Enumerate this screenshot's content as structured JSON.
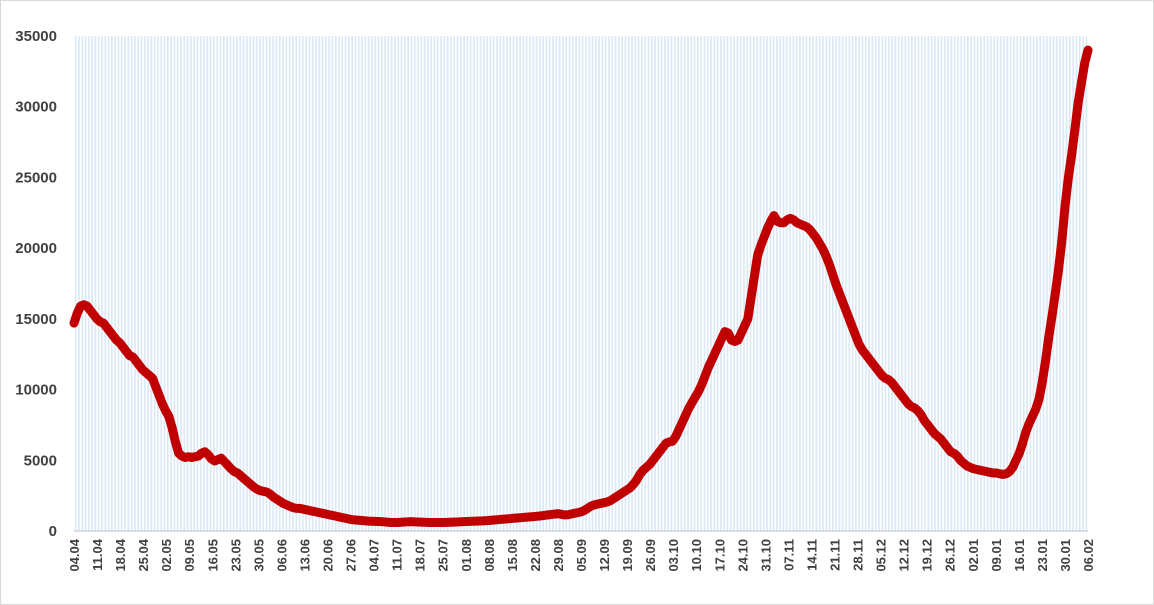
{
  "chart_data": {
    "type": "line",
    "title": "",
    "xlabel": "",
    "ylabel": "",
    "ylim": [
      0,
      35000
    ],
    "yticks": [
      0,
      5000,
      10000,
      15000,
      20000,
      25000,
      30000,
      35000
    ],
    "ytick_labels": [
      "0",
      "5000",
      "10000",
      "15000",
      "20000",
      "25000",
      "30000",
      "35000"
    ],
    "xtick_labels": [
      "04.04",
      "11.04",
      "18.04",
      "25.04",
      "02.05",
      "09.05",
      "16.05",
      "23.05",
      "30.05",
      "06.06",
      "13.06",
      "20.06",
      "27.06",
      "04.07",
      "11.07",
      "18.07",
      "25.07",
      "01.08",
      "08.08",
      "15.08",
      "22.08",
      "29.08",
      "05.09",
      "12.09",
      "19.09",
      "26.09",
      "03.10",
      "10.10",
      "17.10",
      "24.10",
      "31.10",
      "07.11",
      "14.11",
      "21.11",
      "28.11",
      "05.12",
      "12.12",
      "19.12",
      "26.12",
      "02.01",
      "09.01",
      "16.01",
      "23.01",
      "30.01",
      "06.02"
    ],
    "grid": "vertical lines at each day",
    "background_color": "#dce9f6",
    "grid_color": "#ffffff",
    "line_color": "#c00000",
    "series": [
      {
        "values": [
          14700,
          15400,
          15900,
          16000,
          15900,
          15600,
          15300,
          15000,
          14800,
          14700,
          14400,
          14100,
          13800,
          13500,
          13300,
          13000,
          12700,
          12400,
          12300,
          12000,
          11700,
          11400,
          11200,
          11000,
          10800,
          10200,
          9600,
          9000,
          8500,
          8100,
          7300,
          6300,
          5500,
          5300,
          5200,
          5250,
          5200,
          5250,
          5300,
          5500,
          5600,
          5400,
          5100,
          4950,
          5050,
          5150,
          4900,
          4650,
          4400,
          4200,
          4100,
          3900,
          3700,
          3500,
          3300,
          3100,
          2950,
          2850,
          2800,
          2750,
          2600,
          2400,
          2250,
          2100,
          1950,
          1850,
          1750,
          1650,
          1600,
          1600,
          1550,
          1500,
          1450,
          1400,
          1350,
          1300,
          1250,
          1200,
          1150,
          1100,
          1050,
          1000,
          950,
          900,
          850,
          800,
          780,
          760,
          740,
          720,
          700,
          690,
          680,
          670,
          660,
          640,
          620,
          600,
          600,
          600,
          620,
          640,
          650,
          660,
          650,
          640,
          630,
          620,
          610,
          600,
          600,
          600,
          600,
          600,
          610,
          620,
          630,
          640,
          650,
          660,
          670,
          680,
          690,
          700,
          710,
          720,
          730,
          750,
          770,
          790,
          810,
          830,
          850,
          870,
          890,
          910,
          930,
          950,
          970,
          990,
          1010,
          1030,
          1050,
          1080,
          1110,
          1140,
          1170,
          1200,
          1230,
          1180,
          1140,
          1150,
          1200,
          1250,
          1300,
          1350,
          1450,
          1600,
          1750,
          1850,
          1900,
          1950,
          2000,
          2050,
          2150,
          2300,
          2450,
          2600,
          2750,
          2900,
          3050,
          3300,
          3600,
          4000,
          4300,
          4500,
          4700,
          5000,
          5300,
          5600,
          5900,
          6200,
          6300,
          6350,
          6700,
          7200,
          7700,
          8200,
          8700,
          9100,
          9500,
          9900,
          10400,
          11000,
          11600,
          12100,
          12600,
          13100,
          13600,
          14100,
          14000,
          13500,
          13400,
          13500,
          14000,
          14500,
          15000,
          16500,
          18000,
          19500,
          20200,
          20800,
          21400,
          21900,
          22300,
          21900,
          21800,
          21800,
          22000,
          22100,
          22000,
          21800,
          21700,
          21600,
          21500,
          21300,
          21000,
          20700,
          20300,
          19900,
          19400,
          18800,
          18100,
          17400,
          16800,
          16200,
          15600,
          15000,
          14400,
          13800,
          13200,
          12800,
          12500,
          12200,
          11900,
          11600,
          11300,
          11000,
          10800,
          10700,
          10500,
          10200,
          9900,
          9600,
          9300,
          9000,
          8800,
          8700,
          8500,
          8200,
          7800,
          7500,
          7200,
          6900,
          6700,
          6500,
          6200,
          5900,
          5600,
          5500,
          5300,
          5000,
          4800,
          4600,
          4500,
          4400,
          4350,
          4300,
          4250,
          4200,
          4150,
          4100,
          4100,
          4050,
          4000,
          4050,
          4200,
          4500,
          5000,
          5500,
          6200,
          7000,
          7600,
          8100,
          8600,
          9300,
          10500,
          12000,
          13700,
          15200,
          16800,
          18500,
          20500,
          23000,
          25000,
          26600,
          28400,
          30300,
          31700,
          33100,
          34000
        ]
      }
    ]
  }
}
